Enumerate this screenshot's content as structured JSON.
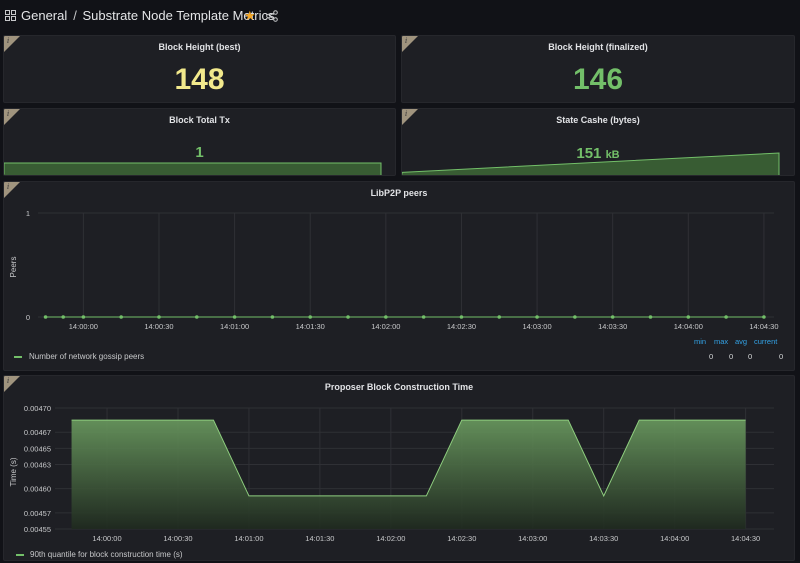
{
  "header": {
    "folder": "General",
    "separator": "/",
    "dashboard_title": "Substrate Node Template Metrics"
  },
  "panels": {
    "block_height_best": {
      "title": "Block Height (best)",
      "value": "148",
      "color": "#f2e98c"
    },
    "block_height_finalized": {
      "title": "Block Height (finalized)",
      "value": "146",
      "color": "#73bf69"
    },
    "block_total_tx": {
      "title": "Block Total Tx",
      "value": "1",
      "color": "#73bf69"
    },
    "state_cache": {
      "title": "State Cashe (bytes)",
      "value": "151",
      "unit": "kB",
      "color": "#73bf69"
    },
    "libp2p_peers": {
      "title": "LibP2P peers",
      "ylabel": "Peers",
      "legend": "Number of network gossip peers",
      "stats_headers": [
        "min",
        "max",
        "avg",
        "current"
      ],
      "stats_values": [
        "0",
        "0",
        "0",
        "0"
      ]
    },
    "proposer": {
      "title": "Proposer Block Construction Time",
      "ylabel": "Time (s)",
      "legend": "90th quantile for block construction time (s)"
    }
  },
  "colors": {
    "series": "#73bf69",
    "background": "#111217",
    "panel": "#1e1f24"
  },
  "chart_data": [
    {
      "type": "line",
      "title": "LibP2P peers",
      "ylabel": "Peers",
      "ylim": [
        0,
        1
      ],
      "yticks": [
        "0",
        "1"
      ],
      "xticks": [
        "14:00:00",
        "14:00:30",
        "14:01:00",
        "14:01:30",
        "14:02:00",
        "14:02:30",
        "14:03:00",
        "14:03:30",
        "14:04:00",
        "14:04:30"
      ],
      "series": [
        {
          "name": "Number of network gossip peers",
          "x": [
            "13:59:45",
            "13:59:52",
            "14:00:00",
            "14:00:15",
            "14:00:30",
            "14:00:45",
            "14:01:00",
            "14:01:15",
            "14:01:30",
            "14:01:45",
            "14:02:00",
            "14:02:15",
            "14:02:30",
            "14:02:45",
            "14:03:00",
            "14:03:15",
            "14:03:30",
            "14:03:45",
            "14:04:00",
            "14:04:15",
            "14:04:30"
          ],
          "values": [
            0,
            0,
            0,
            0,
            0,
            0,
            0,
            0,
            0,
            0,
            0,
            0,
            0,
            0,
            0,
            0,
            0,
            0,
            0,
            0,
            0
          ]
        }
      ]
    },
    {
      "type": "area",
      "title": "Proposer Block Construction Time",
      "ylabel": "Time (s)",
      "ylim": [
        0.00455,
        0.0047
      ],
      "yticks": [
        "0.00470",
        "0.00467",
        "0.00465",
        "0.00463",
        "0.00460",
        "0.00457",
        "0.00455"
      ],
      "xticks": [
        "14:00:00",
        "14:00:30",
        "14:01:00",
        "14:01:30",
        "14:02:00",
        "14:02:30",
        "14:03:00",
        "14:03:30",
        "14:04:00",
        "14:04:30"
      ],
      "series": [
        {
          "name": "90th quantile for block construction time (s)",
          "x": [
            "13:59:45",
            "14:00:45",
            "14:01:00",
            "14:02:15",
            "14:02:30",
            "14:03:15",
            "14:03:30",
            "14:03:45",
            "14:04:30"
          ],
          "values": [
            0.004685,
            0.004685,
            0.004591,
            0.004591,
            0.004685,
            0.004685,
            0.004591,
            0.004685,
            0.004685
          ]
        }
      ]
    },
    {
      "type": "area",
      "title": "Block Total Tx",
      "series": [
        {
          "values": [
            1,
            1
          ]
        }
      ]
    },
    {
      "type": "area",
      "title": "State Cashe (bytes)",
      "series": [
        {
          "values": [
            100,
            151
          ]
        }
      ]
    }
  ]
}
